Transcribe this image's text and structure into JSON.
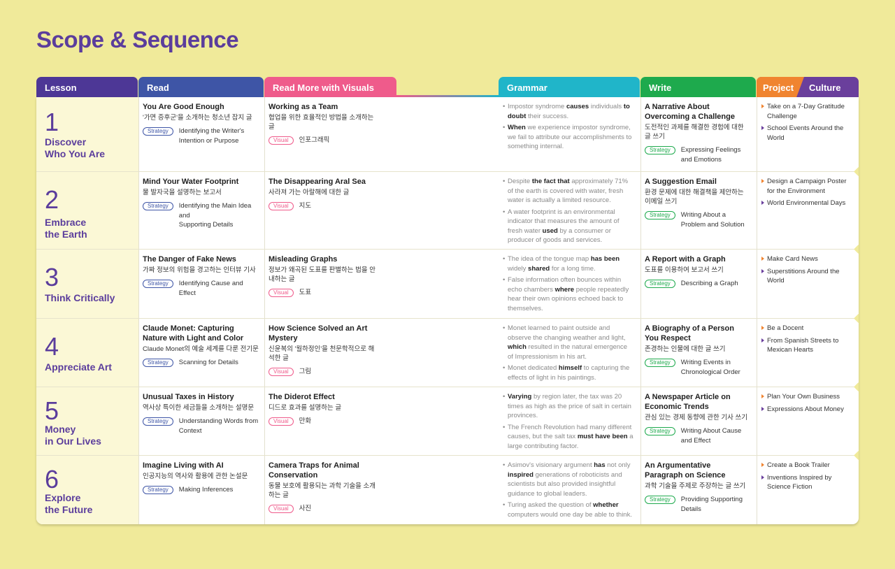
{
  "title": "Scope & Sequence",
  "headers": {
    "lesson": "Lesson",
    "read": "Read",
    "read_more": "Read More with Visuals",
    "grammar": "Grammar",
    "write": "Write",
    "project": "Project",
    "culture": "Culture"
  },
  "colors": {
    "background": "#f0ea9a",
    "lesson": "#4d3796",
    "read": "#3e55a6",
    "read_more": "#ef5b8b",
    "grammar": "#20b5c9",
    "write": "#1eaa4d",
    "project": "#f08430",
    "culture": "#6a3f9c"
  },
  "tags": {
    "strategy": "Strategy",
    "visual": "Visual"
  },
  "lessons": [
    {
      "number": "1",
      "name_line1": "Discover",
      "name_line2": "Who You Are",
      "read": {
        "title": "You Are Good Enough",
        "korean": "'가면 증후군'을 소개하는 청소년 잡지 글",
        "strategy_line1": "Identifying the Writer's",
        "strategy_line2": "Intention or Purpose"
      },
      "read_more": {
        "title": "Working as a Team",
        "korean_line1": "협업을 위한 효율적인 방법을 소개하는 글",
        "visual": "인포그래픽"
      },
      "grammar": [
        {
          "pre": "Impostor syndrome ",
          "b1": "causes",
          "mid": " individuals ",
          "b2": "to doubt",
          "post": " their success."
        },
        {
          "pre": "",
          "b1": "When",
          "mid": " we experience impostor syndrome, we fail to attribute our accomplishments to something internal.",
          "b2": "",
          "post": ""
        }
      ],
      "write": {
        "title": "A Narrative About Overcoming a Challenge",
        "korean": "도전적인 과제를 해결한 경험에 대한 글 쓰기",
        "strategy": "Expressing Feelings and Emotions"
      },
      "project": "Take on a 7-Day Gratitude Challenge",
      "culture": "School Events Around the World"
    },
    {
      "number": "2",
      "name_line1": "Embrace",
      "name_line2": "the Earth",
      "read": {
        "title": "Mind Your Water Footprint",
        "korean": "물 발자국을 설명하는 보고서",
        "strategy_line1": "Identifying the Main Idea and",
        "strategy_line2": "Supporting Details"
      },
      "read_more": {
        "title": "The Disappearing Aral Sea",
        "korean_line1": "사라져 가는 아랄해에 대한 글",
        "visual": "지도"
      },
      "grammar": [
        {
          "pre": "Despite ",
          "b1": "the fact that",
          "mid": " approximately 71% of the earth is covered with water, fresh water is actually a limited resource.",
          "b2": "",
          "post": ""
        },
        {
          "pre": "A water footprint is an environmental indicator that measures the amount of fresh water ",
          "b1": "used",
          "mid": " by a consumer or producer of goods and services.",
          "b2": "",
          "post": ""
        }
      ],
      "write": {
        "title": "A Suggestion Email",
        "korean": "환경 문제에 대한 해결책을 제안하는 이메일 쓰기",
        "strategy": "Writing About a Problem and Solution"
      },
      "project": "Design a Campaign Poster for the Environment",
      "culture": "World Environmental Days"
    },
    {
      "number": "3",
      "name_line1": "Think Critically",
      "name_line2": "",
      "read": {
        "title": "The Danger of Fake News",
        "korean": "가짜 정보의 위험을 경고하는 인터뷰 기사",
        "strategy_line1": "Identifying Cause and Effect",
        "strategy_line2": ""
      },
      "read_more": {
        "title": "Misleading Graphs",
        "korean_line1": "정보가 왜곡된 도표를 판별하는 법을 안내하는 글",
        "visual": "도표"
      },
      "grammar": [
        {
          "pre": "The idea of the tongue map ",
          "b1": "has been",
          "mid": " widely ",
          "b2": "shared",
          "post": " for a long time."
        },
        {
          "pre": "False information often bounces within echo chambers ",
          "b1": "where",
          "mid": " people repeatedly hear their own opinions echoed back to themselves.",
          "b2": "",
          "post": ""
        }
      ],
      "write": {
        "title": "A Report with a Graph",
        "korean": "도표를 이용하여 보고서 쓰기",
        "strategy": "Describing a Graph"
      },
      "project": "Make Card News",
      "culture": "Superstitions Around the World"
    },
    {
      "number": "4",
      "name_line1": "Appreciate Art",
      "name_line2": "",
      "read": {
        "title": "Claude Monet: Capturing Nature with Light and Color",
        "korean": "Claude Monet의 예술 세계를 다룬 전기문",
        "strategy_line1": "Scanning for Details",
        "strategy_line2": ""
      },
      "read_more": {
        "title": "How Science Solved an Art Mystery",
        "korean_line1": "신윤복의 '월하정인'을 천문학적으로 해석한 글",
        "visual": "그림"
      },
      "grammar": [
        {
          "pre": "Monet learned to paint outside and observe the changing weather and light, ",
          "b1": "which",
          "mid": " resulted in the natural emergence of Impressionism in his art.",
          "b2": "",
          "post": ""
        },
        {
          "pre": "Monet dedicated ",
          "b1": "himself",
          "mid": " to capturing the effects of light in his paintings.",
          "b2": "",
          "post": ""
        }
      ],
      "write": {
        "title": "A Biography of a Person You Respect",
        "korean": "존경하는 인물에 대한 글 쓰기",
        "strategy": "Writing Events in Chronological Order"
      },
      "project": "Be a Docent",
      "culture": "From Spanish Streets to Mexican Hearts"
    },
    {
      "number": "5",
      "name_line1": "Money",
      "name_line2": "in Our Lives",
      "read": {
        "title": "Unusual Taxes in History",
        "korean": "역사상 특이한 세금들을 소개하는 설명문",
        "strategy_line1": "Understanding Words from",
        "strategy_line2": "Context"
      },
      "read_more": {
        "title": "The Diderot Effect",
        "korean_line1": "디드로 효과를 설명하는 글",
        "visual": "만화"
      },
      "grammar": [
        {
          "pre": "",
          "b1": "Varying",
          "mid": " by region later, the tax was 20 times as high as the price of salt in certain provinces.",
          "b2": "",
          "post": ""
        },
        {
          "pre": "The French Revolution had many different causes, but the salt tax ",
          "b1": "must have been",
          "mid": " a large contributing factor.",
          "b2": "",
          "post": ""
        }
      ],
      "write": {
        "title": "A Newspaper Article on Economic Trends",
        "korean": "관심 있는 경제 동향에 관한 기사 쓰기",
        "strategy": "Writing About Cause and Effect"
      },
      "project": "Plan Your Own Business",
      "culture": "Expressions About Money"
    },
    {
      "number": "6",
      "name_line1": "Explore",
      "name_line2": "the Future",
      "read": {
        "title": "Imagine Living with AI",
        "korean": "인공지능의 역사와 활용에 관한 논설문",
        "strategy_line1": "Making Inferences",
        "strategy_line2": ""
      },
      "read_more": {
        "title": "Camera Traps for Animal Conservation",
        "korean_line1": "동물 보호에 활용되는 과학 기술을 소개하는 글",
        "visual": "사진"
      },
      "grammar": [
        {
          "pre": "Asimov's visionary argument ",
          "b1": "has",
          "mid": " not only ",
          "b2": "inspired",
          "post": " generations of roboticists and scientists but also provided insightful guidance to global leaders."
        },
        {
          "pre": "Turing asked the question of ",
          "b1": "whether",
          "mid": " computers would one day be able to think.",
          "b2": "",
          "post": ""
        }
      ],
      "write": {
        "title": "An Argumentative Paragraph on Science",
        "korean": "과학 기술을 주제로 주장하는 글 쓰기",
        "strategy": "Providing Supporting Details"
      },
      "project": "Create a Book Trailer",
      "culture": "Inventions Inspired by Science Fiction"
    }
  ]
}
